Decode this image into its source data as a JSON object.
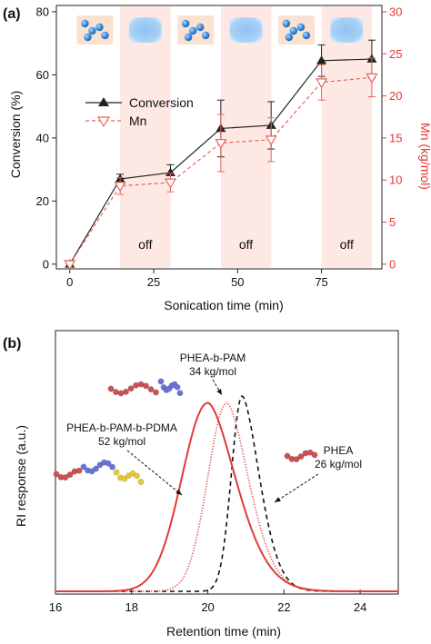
{
  "figure": {
    "panel_a_label": "(a)",
    "panel_b_label": "(b)"
  },
  "chart_data": [
    {
      "panel": "(a)",
      "type": "line",
      "xlabel": "Sonication time (min)",
      "ylabel": "Conversion (%)",
      "y2label": "Mn (kg/mol)",
      "xlim": [
        -4,
        93
      ],
      "ylim": [
        -1.5,
        82
      ],
      "y2lim": [
        -0.56,
        30.75
      ],
      "xticks": [
        0,
        25,
        50,
        75
      ],
      "yticks": [
        0,
        20,
        40,
        60,
        80
      ],
      "y2ticks": [
        0,
        5,
        10,
        15,
        20,
        25,
        30
      ],
      "x": [
        0,
        15,
        30,
        45,
        60,
        75,
        90
      ],
      "series": [
        {
          "name": "Conversion",
          "axis": "left",
          "color": "#222222",
          "marker": "filled-triangle-up",
          "values": [
            0,
            27,
            29,
            43,
            44,
            64.5,
            65
          ],
          "error": [
            0,
            1.5,
            2.5,
            9,
            7.5,
            5,
            6
          ]
        },
        {
          "name": "Mn",
          "axis": "right",
          "color": "#e8645a",
          "marker": "open-triangle-down",
          "values": [
            0,
            9.3,
            9.7,
            14.4,
            14.8,
            21.6,
            22.2
          ],
          "error": [
            0,
            1,
            1.1,
            3.4,
            2.6,
            2.1,
            2.3
          ]
        }
      ],
      "off_periods": [
        [
          15,
          30
        ],
        [
          45,
          60
        ],
        [
          75,
          90
        ]
      ],
      "off_label": "off",
      "band_color": "#fde8e4",
      "icons": [
        {
          "at": 0,
          "kind": "beads"
        },
        {
          "at": 15,
          "kind": "blue-glow"
        },
        {
          "at": 30,
          "kind": "beads"
        },
        {
          "at": 45,
          "kind": "blue-glow"
        },
        {
          "at": 60,
          "kind": "beads"
        },
        {
          "at": 75,
          "kind": "blue-glow"
        }
      ],
      "legend_position": "center-left",
      "grid": false
    },
    {
      "panel": "(b)",
      "type": "line",
      "xlabel": "Retention time (min)",
      "ylabel": "RI response (a.u.)",
      "xlim": [
        16,
        25
      ],
      "xticks": [
        16,
        18,
        20,
        22,
        24
      ],
      "grid": false,
      "series": [
        {
          "label_name": "PHEA",
          "label_mw": "26 kg/mol",
          "style": "dashed",
          "color": "#111111",
          "peak": 20.9,
          "sigma_left": 0.28,
          "tail_tau": 0.55,
          "height": 1.0
        },
        {
          "label_name": "PHEA-b-PAM",
          "label_mw": "34 kg/mol",
          "style": "dotted",
          "color": "#e04848",
          "peak": 20.5,
          "sigma_left": 0.5,
          "tail_tau": 0.7,
          "height": 0.965
        },
        {
          "label_name": "PHEA-b-PAM-b-PDMA",
          "label_mw": "52 kg/mol",
          "style": "solid",
          "color": "#e23a36",
          "peak": 20.0,
          "sigma_left": 0.68,
          "tail_tau": 0.9,
          "height": 0.965
        }
      ]
    }
  ]
}
